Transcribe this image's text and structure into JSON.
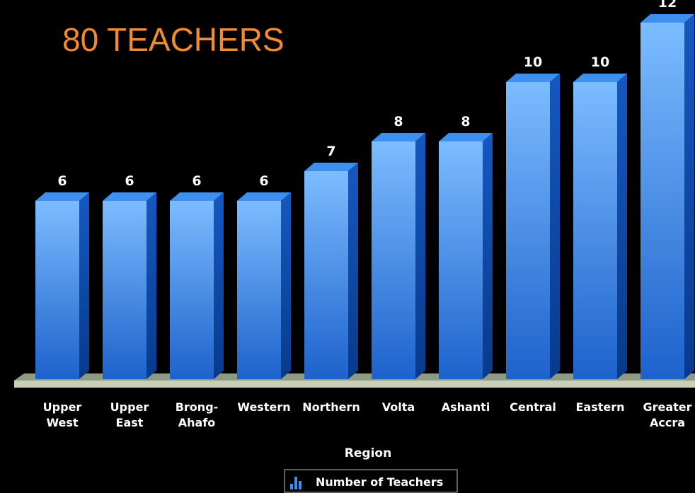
{
  "chart_data": {
    "type": "bar",
    "title": "80 TEACHERS",
    "x_label": "Region",
    "categories": [
      "Upper West",
      "Upper East",
      "Brong-Ahafo",
      "Western",
      "Northern",
      "Volta",
      "Ashanti",
      "Central",
      "Eastern",
      "Greater Accra"
    ],
    "series": [
      {
        "name": "Number of Teachers",
        "color": "#3d8ff0",
        "values": [
          6,
          6,
          6,
          6,
          7,
          8,
          8,
          10,
          10,
          12
        ]
      }
    ]
  }
}
